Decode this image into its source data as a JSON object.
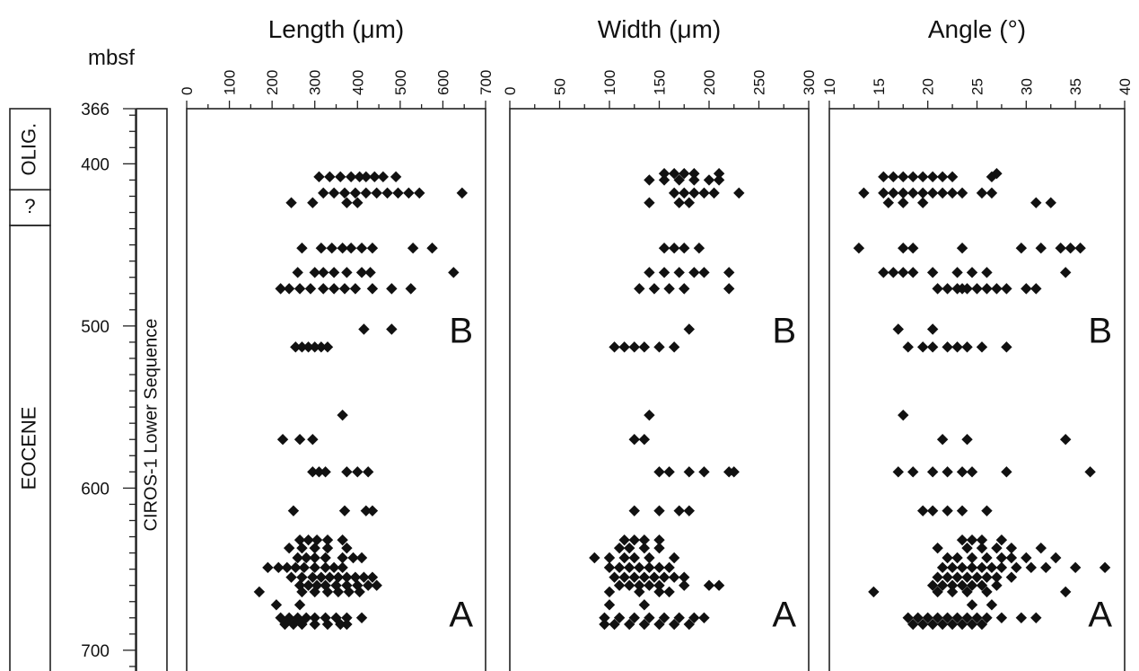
{
  "depth_axis": {
    "label": "mbsf",
    "range": [
      366,
      720
    ],
    "ticks": [
      366,
      400,
      500,
      600,
      700
    ],
    "tick_labels": [
      "366",
      "400",
      "500",
      "600",
      "700"
    ]
  },
  "stratigraphy": {
    "units": [
      {
        "label": "OLIG.",
        "top": 366,
        "bottom": 416
      },
      {
        "label": "?",
        "top": 416,
        "bottom": 438
      },
      {
        "label": "EOCENE",
        "top": 438,
        "bottom": 720
      }
    ],
    "sequence_label": "CIROS-1 Lower Sequence"
  },
  "chart_data": [
    {
      "type": "scatter",
      "title": "Length (μm)",
      "xlim": [
        0,
        700
      ],
      "xticks": [
        0,
        100,
        200,
        300,
        400,
        500,
        600,
        700
      ],
      "xtick_labels": [
        "0",
        "100",
        "200",
        "300",
        "400",
        "500",
        "600",
        "700"
      ],
      "panel_labels": [
        {
          "text": "B",
          "depth": 502
        },
        {
          "text": "A",
          "depth": 677
        }
      ],
      "rows": [
        {
          "depth": 408,
          "x": [
            310,
            335,
            360,
            385,
            405,
            420,
            440,
            460,
            490
          ]
        },
        {
          "depth": 418,
          "x": [
            320,
            345,
            370,
            395,
            420,
            445,
            470,
            495,
            520,
            545,
            645
          ]
        },
        {
          "depth": 424,
          "x": [
            245,
            295,
            375,
            400
          ]
        },
        {
          "depth": 452,
          "x": [
            270,
            315,
            340,
            365,
            385,
            410,
            435,
            530,
            575
          ]
        },
        {
          "depth": 467,
          "x": [
            260,
            300,
            320,
            345,
            375,
            410,
            430,
            625
          ]
        },
        {
          "depth": 477,
          "x": [
            220,
            240,
            265,
            290,
            320,
            345,
            370,
            395,
            435,
            480,
            525
          ]
        },
        {
          "depth": 502,
          "x": [
            415,
            480
          ]
        },
        {
          "depth": 513,
          "x": [
            255,
            270,
            285,
            300,
            315,
            330
          ]
        },
        {
          "depth": 555,
          "x": [
            365
          ]
        },
        {
          "depth": 570,
          "x": [
            225,
            265,
            295
          ]
        },
        {
          "depth": 590,
          "x": [
            295,
            310,
            325,
            375,
            400,
            425
          ]
        },
        {
          "depth": 614,
          "x": [
            250,
            370,
            420,
            435
          ]
        },
        {
          "depth": 632,
          "x": [
            265,
            285,
            305,
            330,
            365
          ]
        },
        {
          "depth": 637,
          "x": [
            240,
            270,
            300,
            330,
            375
          ]
        },
        {
          "depth": 643,
          "x": [
            260,
            280,
            300,
            325,
            365,
            390,
            410
          ]
        },
        {
          "depth": 649,
          "x": [
            190,
            215,
            235,
            255,
            275,
            300,
            325,
            345,
            365
          ]
        },
        {
          "depth": 655,
          "x": [
            245,
            270,
            295,
            315,
            335,
            355,
            375,
            395,
            415,
            435
          ]
        },
        {
          "depth": 660,
          "x": [
            265,
            285,
            305,
            325,
            350,
            375,
            400,
            425,
            445
          ]
        },
        {
          "depth": 664,
          "x": [
            170,
            270,
            300,
            330,
            355,
            380,
            405
          ]
        },
        {
          "depth": 672,
          "x": [
            210,
            265
          ]
        },
        {
          "depth": 680,
          "x": [
            220,
            240,
            260,
            280,
            300,
            325,
            350,
            375,
            410
          ]
        },
        {
          "depth": 684,
          "x": [
            230,
            250,
            270,
            300,
            330,
            360,
            375
          ]
        }
      ]
    },
    {
      "type": "scatter",
      "title": "Width (μm)",
      "xlim": [
        0,
        300
      ],
      "xticks": [
        0,
        50,
        100,
        150,
        200,
        250,
        300
      ],
      "xtick_labels": [
        "0",
        "50",
        "100",
        "150",
        "200",
        "250",
        "300"
      ],
      "panel_labels": [
        {
          "text": "B",
          "depth": 502
        },
        {
          "text": "A",
          "depth": 677
        }
      ],
      "rows": [
        {
          "depth": 406,
          "x": [
            155,
            165,
            175,
            185,
            210
          ]
        },
        {
          "depth": 410,
          "x": [
            140,
            155,
            170,
            185,
            200,
            210
          ]
        },
        {
          "depth": 418,
          "x": [
            165,
            175,
            185,
            195,
            205,
            230
          ]
        },
        {
          "depth": 424,
          "x": [
            140,
            170,
            180
          ]
        },
        {
          "depth": 452,
          "x": [
            155,
            165,
            175,
            190
          ]
        },
        {
          "depth": 467,
          "x": [
            140,
            155,
            170,
            185,
            195,
            220
          ]
        },
        {
          "depth": 477,
          "x": [
            130,
            145,
            160,
            175,
            220
          ]
        },
        {
          "depth": 502,
          "x": [
            180
          ]
        },
        {
          "depth": 513,
          "x": [
            105,
            115,
            125,
            135,
            150,
            165
          ]
        },
        {
          "depth": 555,
          "x": [
            140
          ]
        },
        {
          "depth": 570,
          "x": [
            125,
            135
          ]
        },
        {
          "depth": 590,
          "x": [
            150,
            160,
            180,
            195,
            220,
            225
          ]
        },
        {
          "depth": 614,
          "x": [
            125,
            150,
            170,
            180
          ]
        },
        {
          "depth": 632,
          "x": [
            115,
            125,
            135,
            150
          ]
        },
        {
          "depth": 637,
          "x": [
            110,
            120,
            135,
            150
          ]
        },
        {
          "depth": 643,
          "x": [
            85,
            100,
            115,
            125,
            140,
            165
          ]
        },
        {
          "depth": 649,
          "x": [
            100,
            110,
            120,
            130,
            140,
            150,
            160
          ]
        },
        {
          "depth": 655,
          "x": [
            105,
            115,
            125,
            135,
            145,
            155,
            165,
            175
          ]
        },
        {
          "depth": 660,
          "x": [
            110,
            120,
            130,
            140,
            150,
            175,
            200,
            210
          ]
        },
        {
          "depth": 664,
          "x": [
            100,
            130,
            150,
            160
          ]
        },
        {
          "depth": 672,
          "x": [
            100,
            135
          ]
        },
        {
          "depth": 680,
          "x": [
            95,
            110,
            125,
            140,
            155,
            170,
            185,
            195
          ]
        },
        {
          "depth": 684,
          "x": [
            95,
            105,
            120,
            135,
            150,
            165,
            180
          ]
        }
      ]
    },
    {
      "type": "scatter",
      "title": "Angle (°)",
      "xlim": [
        10,
        40
      ],
      "xticks": [
        10,
        15,
        20,
        25,
        30,
        35,
        40
      ],
      "xtick_labels": [
        "10",
        "15",
        "20",
        "25",
        "30",
        "35",
        "40"
      ],
      "panel_labels": [
        {
          "text": "B",
          "depth": 502
        },
        {
          "text": "A",
          "depth": 677
        }
      ],
      "rows": [
        {
          "depth": 406,
          "x": [
            27
          ]
        },
        {
          "depth": 408,
          "x": [
            15.5,
            16.5,
            17.5,
            18.5,
            19.5,
            20.5,
            21.5,
            22.5,
            26.5
          ]
        },
        {
          "depth": 418,
          "x": [
            13.5,
            15.5,
            16.5,
            17.5,
            18.5,
            19.5,
            20.5,
            21.5,
            22.5,
            23.5,
            25.5,
            26.5
          ]
        },
        {
          "depth": 424,
          "x": [
            16,
            17.5,
            19.5,
            31,
            32.5
          ]
        },
        {
          "depth": 452,
          "x": [
            13,
            17.5,
            18.5,
            23.5,
            29.5,
            31.5,
            33.5,
            34.5,
            35.5
          ]
        },
        {
          "depth": 467,
          "x": [
            15.5,
            16.5,
            17.5,
            18.5,
            20.5,
            23,
            24.5,
            26,
            34
          ]
        },
        {
          "depth": 477,
          "x": [
            21,
            22,
            23,
            23.5,
            24,
            25,
            26,
            27,
            28,
            30,
            31
          ]
        },
        {
          "depth": 502,
          "x": [
            17,
            20.5
          ]
        },
        {
          "depth": 513,
          "x": [
            18,
            19.5,
            20.5,
            22,
            23,
            24,
            25.5,
            28
          ]
        },
        {
          "depth": 555,
          "x": [
            17.5
          ]
        },
        {
          "depth": 570,
          "x": [
            21.5,
            24,
            34
          ]
        },
        {
          "depth": 590,
          "x": [
            17,
            18.5,
            20.5,
            22,
            23.5,
            24.5,
            28,
            36.5
          ]
        },
        {
          "depth": 614,
          "x": [
            19.5,
            20.5,
            22,
            23.5,
            26
          ]
        },
        {
          "depth": 632,
          "x": [
            23.5,
            24.5,
            25.5,
            27.5
          ]
        },
        {
          "depth": 637,
          "x": [
            21,
            24,
            25.5,
            27,
            28.5,
            31.5
          ]
        },
        {
          "depth": 643,
          "x": [
            22,
            23,
            24.5,
            26,
            27.5,
            28.5,
            30,
            33
          ]
        },
        {
          "depth": 649,
          "x": [
            21.5,
            22.5,
            23.5,
            24.5,
            25.5,
            26.5,
            27.5,
            29,
            30.5,
            32,
            35,
            38
          ]
        },
        {
          "depth": 655,
          "x": [
            21,
            22,
            23,
            24,
            25,
            26,
            27,
            28.5
          ]
        },
        {
          "depth": 660,
          "x": [
            20.5,
            21.5,
            22.5,
            23.5,
            24.5,
            25.5,
            27
          ]
        },
        {
          "depth": 664,
          "x": [
            14.5,
            21,
            22.5,
            24,
            26,
            34
          ]
        },
        {
          "depth": 672,
          "x": [
            24.5,
            26.5
          ]
        },
        {
          "depth": 680,
          "x": [
            18,
            19,
            20,
            21,
            22,
            23,
            24,
            25,
            26,
            27.5,
            29.5,
            31
          ]
        },
        {
          "depth": 684,
          "x": [
            18.5,
            19.5,
            20.5,
            21.5,
            22.5,
            23.5,
            24.5,
            25.5
          ]
        }
      ]
    }
  ]
}
